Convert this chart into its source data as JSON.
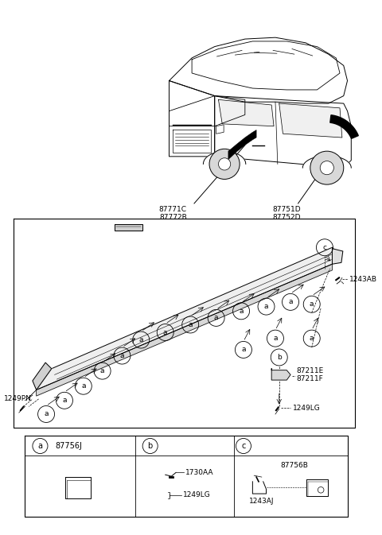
{
  "bg_color": "#ffffff",
  "fig_width": 4.8,
  "fig_height": 6.73,
  "car_label1": "87771C\n87772B",
  "car_label2": "87751D\n87752D",
  "label_1243AB": "1243AB",
  "label_87211EF": "87211E\n87211F",
  "label_1249LG": "1249LG",
  "label_1249PN": "1249PN",
  "label_87756J": "87756J",
  "label_1730AA": "1730AA",
  "label_1249LG_b": "1249LG",
  "label_87756B": "87756B",
  "label_1243AJ": "1243AJ"
}
